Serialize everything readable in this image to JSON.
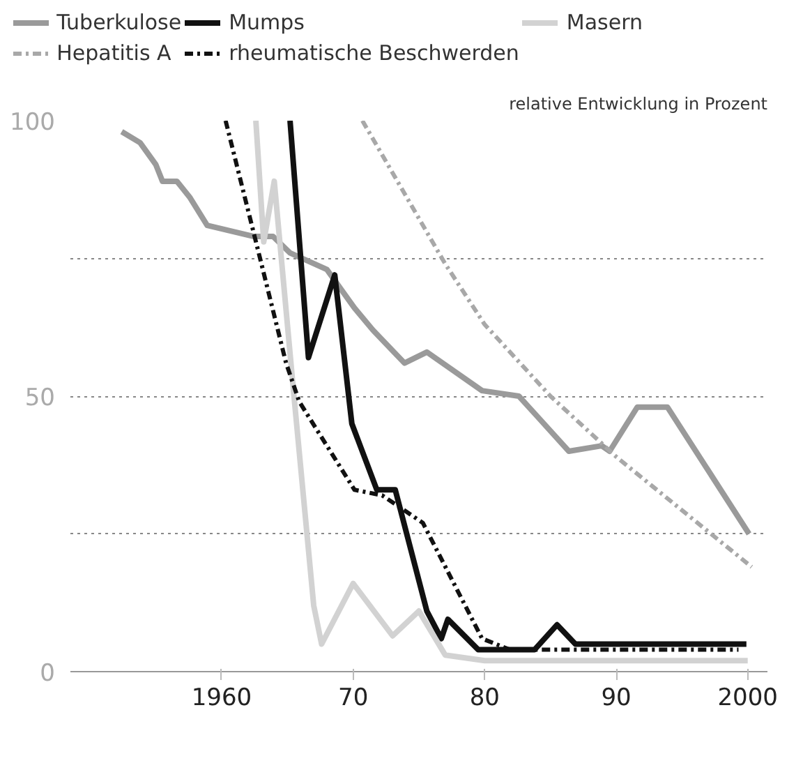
{
  "chart_data": {
    "type": "line",
    "annotations": [
      "relative Entwicklung in Prozent"
    ],
    "xlim": [
      1948.5,
      2001.5
    ],
    "ylim": [
      0,
      100
    ],
    "xticks": [
      {
        "value": 1960,
        "label": "1960"
      },
      {
        "value": 1970,
        "label": "70"
      },
      {
        "value": 1980,
        "label": "80"
      },
      {
        "value": 1990,
        "label": "90"
      },
      {
        "value": 2000,
        "label": "2000"
      }
    ],
    "yticks": [
      0,
      {
        "value": 25,
        "label": null
      },
      50,
      {
        "value": 75,
        "label": null
      },
      100
    ],
    "grid": "y",
    "legend": "top",
    "marker": "none",
    "series": [
      {
        "name": "Tuberkulose",
        "color": "#9a9a9a",
        "line_style": "solid",
        "x": [
          1952.4,
          1953.8,
          1955,
          1955.5,
          1956.6,
          1957.6,
          1958.9,
          1962.4,
          1963.9,
          1965.2,
          1968,
          1970.1,
          1971.5,
          1973.9,
          1975.6,
          1979.8,
          1982.6,
          1986.4,
          1988.9,
          1989.5,
          1991.6,
          1993.9,
          2000.1
        ],
        "values": [
          98,
          96,
          92,
          89,
          89,
          86,
          81,
          79,
          79,
          76,
          73,
          66,
          62,
          56,
          58,
          51,
          50,
          40,
          41,
          40,
          48,
          48,
          25
        ]
      },
      {
        "name": "Mumps",
        "color": "#111111",
        "line_style": "solid",
        "x": [
          1965.2,
          1966.6,
          1968.6,
          1969.9,
          1971.8,
          1973.2,
          1975.6,
          1976.7,
          1977.2,
          1979.5,
          1983.8,
          1985.5,
          1986.9,
          1999.9
        ],
        "values": [
          100,
          57,
          72,
          45,
          33,
          33,
          11,
          6,
          9.5,
          4,
          4,
          8.5,
          5,
          5
        ]
      },
      {
        "name": "Masern",
        "color": "#d2d2d2",
        "line_style": "solid",
        "x": [
          1962.6,
          1963.2,
          1964,
          1965.5,
          1967,
          1967.6,
          1970,
          1973,
          1975,
          1977,
          1980,
          1985,
          2000
        ],
        "values": [
          100,
          78,
          89,
          50,
          12,
          5,
          16,
          6.5,
          11,
          3,
          2,
          2,
          2
        ]
      },
      {
        "name": "Hepatitis A",
        "color": "#a8a8a8",
        "line_style": "dashdot",
        "x": [
          1970.7,
          1977,
          1980,
          1985,
          1990,
          2000.3
        ],
        "values": [
          100,
          74,
          63,
          50,
          39,
          19
        ]
      },
      {
        "name": "rheumatische Beschwerden",
        "color": "#111111",
        "line_style": "dashdot",
        "x": [
          1960.3,
          1962.4,
          1964.9,
          1965.9,
          1970.1,
          1972.2,
          1975.3,
          1979.8,
          1981.9,
          1999.3
        ],
        "values": [
          100,
          80,
          56,
          49,
          33,
          32,
          27,
          6,
          4,
          4
        ]
      }
    ]
  }
}
